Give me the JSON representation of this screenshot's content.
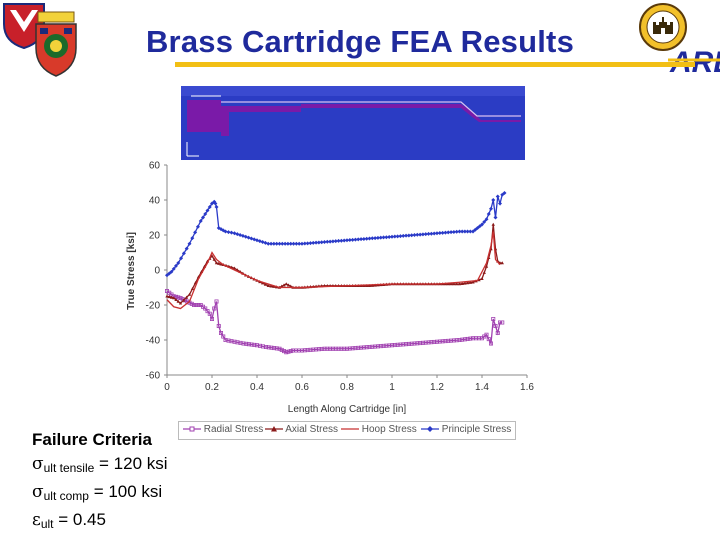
{
  "header": {
    "title": "Brass Cartridge FEA Results",
    "accent_color": "#f2bf14",
    "title_color": "#1f2a9c"
  },
  "logos": {
    "left_primary": "amc-shield-logo",
    "left_secondary": "rdecom-crest-logo",
    "right_primary": "engineer-castle-seal-logo",
    "right_secondary": "arl-logo",
    "arl_text": "ARL"
  },
  "fea_strip": {
    "background": "#2b3cc4",
    "part_color": "#7a1aa8"
  },
  "chart_data": {
    "type": "scatter",
    "xlabel": "Length Along Cartridge [in]",
    "ylabel": "True Stress [ksi]",
    "xlim": [
      0,
      1.6
    ],
    "ylim": [
      -60,
      60
    ],
    "xticks": [
      "0",
      "0.2",
      "0.4",
      "0.6",
      "0.8",
      "1",
      "1.2",
      "1.4",
      "1.6"
    ],
    "yticks": [
      "60",
      "40",
      "20",
      "0",
      "-20",
      "-40",
      "-60"
    ],
    "grid": false,
    "legend_position": "bottom",
    "series": [
      {
        "name": "Radial Stress",
        "color": "#a040b0",
        "marker": "square",
        "points": [
          [
            0,
            -12
          ],
          [
            0.03,
            -15
          ],
          [
            0.06,
            -16
          ],
          [
            0.09,
            -18
          ],
          [
            0.12,
            -20
          ],
          [
            0.15,
            -20
          ],
          [
            0.17,
            -22
          ],
          [
            0.19,
            -25
          ],
          [
            0.2,
            -28
          ],
          [
            0.21,
            -22
          ],
          [
            0.22,
            -18
          ],
          [
            0.23,
            -32
          ],
          [
            0.24,
            -36
          ],
          [
            0.26,
            -40
          ],
          [
            0.3,
            -41
          ],
          [
            0.34,
            -42
          ],
          [
            0.4,
            -43
          ],
          [
            0.44,
            -44
          ],
          [
            0.5,
            -45
          ],
          [
            0.53,
            -47
          ],
          [
            0.56,
            -46
          ],
          [
            0.6,
            -46
          ],
          [
            0.7,
            -45
          ],
          [
            0.8,
            -45
          ],
          [
            0.9,
            -44
          ],
          [
            1.0,
            -43
          ],
          [
            1.1,
            -42
          ],
          [
            1.2,
            -41
          ],
          [
            1.3,
            -40
          ],
          [
            1.36,
            -39
          ],
          [
            1.4,
            -39
          ],
          [
            1.42,
            -37
          ],
          [
            1.44,
            -42
          ],
          [
            1.45,
            -28
          ],
          [
            1.46,
            -32
          ],
          [
            1.47,
            -36
          ],
          [
            1.48,
            -30
          ],
          [
            1.49,
            -30
          ]
        ]
      },
      {
        "name": "Axial Stress",
        "color": "#8b1a1a",
        "marker": "triangle",
        "points": [
          [
            0,
            -15
          ],
          [
            0.03,
            -16
          ],
          [
            0.06,
            -19
          ],
          [
            0.1,
            -14
          ],
          [
            0.14,
            -4
          ],
          [
            0.18,
            5
          ],
          [
            0.2,
            8
          ],
          [
            0.22,
            4
          ],
          [
            0.25,
            3
          ],
          [
            0.3,
            1
          ],
          [
            0.35,
            -3
          ],
          [
            0.4,
            -6
          ],
          [
            0.45,
            -9
          ],
          [
            0.5,
            -10
          ],
          [
            0.53,
            -8
          ],
          [
            0.56,
            -10
          ],
          [
            0.6,
            -10
          ],
          [
            0.7,
            -9
          ],
          [
            0.8,
            -9
          ],
          [
            0.9,
            -9
          ],
          [
            1.0,
            -8
          ],
          [
            1.1,
            -8
          ],
          [
            1.2,
            -8
          ],
          [
            1.3,
            -8
          ],
          [
            1.36,
            -7
          ],
          [
            1.4,
            -5
          ],
          [
            1.42,
            2
          ],
          [
            1.44,
            12
          ],
          [
            1.45,
            26
          ],
          [
            1.46,
            12
          ],
          [
            1.47,
            5
          ],
          [
            1.48,
            4
          ],
          [
            1.49,
            4
          ]
        ]
      },
      {
        "name": "Hoop Stress",
        "color": "#c83030",
        "marker": "line",
        "points": [
          [
            0,
            -17
          ],
          [
            0.03,
            -21
          ],
          [
            0.06,
            -22
          ],
          [
            0.1,
            -18
          ],
          [
            0.14,
            -5
          ],
          [
            0.18,
            4
          ],
          [
            0.2,
            10
          ],
          [
            0.22,
            6
          ],
          [
            0.25,
            3
          ],
          [
            0.3,
            0
          ],
          [
            0.4,
            -6
          ],
          [
            0.5,
            -10
          ],
          [
            0.6,
            -10
          ],
          [
            0.8,
            -9
          ],
          [
            1.0,
            -8
          ],
          [
            1.2,
            -8
          ],
          [
            1.3,
            -7
          ],
          [
            1.38,
            -6
          ],
          [
            1.42,
            4
          ],
          [
            1.44,
            14
          ],
          [
            1.45,
            22
          ],
          [
            1.46,
            6
          ],
          [
            1.48,
            3
          ]
        ]
      },
      {
        "name": "Principle Stress",
        "color": "#2a3ac8",
        "marker": "diamond",
        "points": [
          [
            0,
            -3
          ],
          [
            0.02,
            -1
          ],
          [
            0.05,
            4
          ],
          [
            0.1,
            15
          ],
          [
            0.15,
            28
          ],
          [
            0.18,
            34
          ],
          [
            0.2,
            38
          ],
          [
            0.21,
            39
          ],
          [
            0.215,
            38
          ],
          [
            0.22,
            36
          ],
          [
            0.23,
            24
          ],
          [
            0.26,
            22
          ],
          [
            0.3,
            21
          ],
          [
            0.35,
            19
          ],
          [
            0.4,
            17
          ],
          [
            0.45,
            15
          ],
          [
            0.5,
            15
          ],
          [
            0.55,
            15
          ],
          [
            0.6,
            15
          ],
          [
            0.7,
            16
          ],
          [
            0.8,
            17
          ],
          [
            0.9,
            18
          ],
          [
            1.0,
            19
          ],
          [
            1.1,
            20
          ],
          [
            1.2,
            21
          ],
          [
            1.3,
            22
          ],
          [
            1.36,
            22
          ],
          [
            1.38,
            24
          ],
          [
            1.4,
            26
          ],
          [
            1.42,
            29
          ],
          [
            1.44,
            35
          ],
          [
            1.45,
            40
          ],
          [
            1.46,
            30
          ],
          [
            1.47,
            42
          ],
          [
            1.48,
            38
          ],
          [
            1.49,
            43
          ],
          [
            1.5,
            44
          ]
        ]
      }
    ]
  },
  "criteria": {
    "heading": "Failure Criteria",
    "sigma": "σ",
    "epsilon": "ε",
    "tensile_sub": "ult tensile",
    "tensile_value": " = 120 ksi",
    "comp_sub": "ult comp",
    "comp_value": " = 100 ksi",
    "strain_sub": "ult",
    "strain_value": " = 0.45"
  }
}
